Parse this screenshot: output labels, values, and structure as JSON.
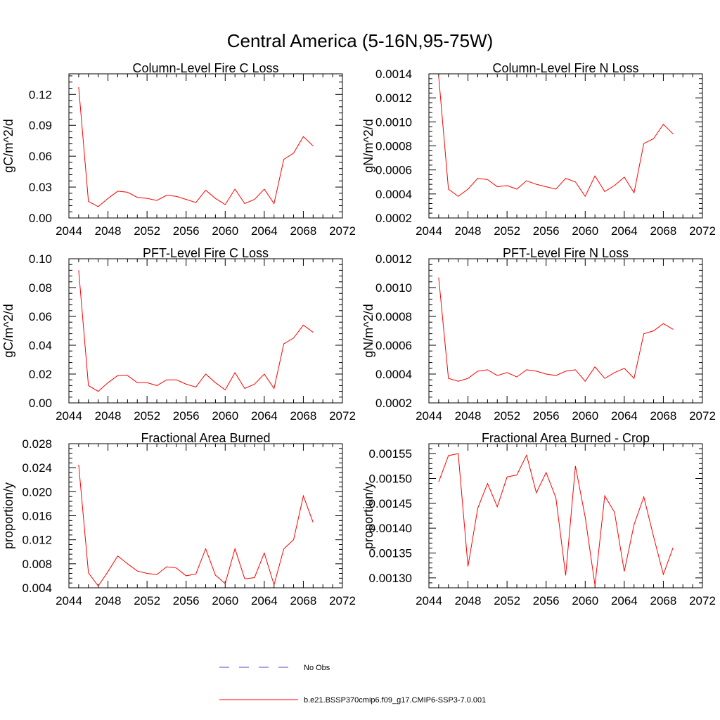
{
  "figure": {
    "title": "Central America (5-16N,95-75W)"
  },
  "legend": [
    {
      "label": "No Obs",
      "color": "#4d4dcc",
      "style": "dashed"
    },
    {
      "label": "b.e21.BSSP370cmip6.f09_g17.CMIP6-SSP3-7.0.001",
      "color": "#ff0000",
      "style": "solid"
    }
  ],
  "colors": {
    "series": "#ff0000",
    "axis": "#000000",
    "obs": "#4d4dcc"
  },
  "chart_data": [
    {
      "type": "line",
      "title": "Column-Level Fire C Loss",
      "xlabel": "",
      "ylabel": "gC/m^2/d",
      "xlim": [
        2044,
        2072
      ],
      "ylim": [
        0,
        0.14
      ],
      "xticks": [
        "2044",
        "2048",
        "2052",
        "2056",
        "2060",
        "2064",
        "2068",
        "2072"
      ],
      "yticks": [
        "0.00",
        "0.03",
        "0.06",
        "0.09",
        "0.12"
      ],
      "x": [
        2045,
        2046,
        2047,
        2048,
        2049,
        2050,
        2051,
        2052,
        2053,
        2054,
        2055,
        2056,
        2057,
        2058,
        2059,
        2060,
        2061,
        2062,
        2063,
        2064,
        2065,
        2066,
        2067,
        2068,
        2069
      ],
      "series": [
        {
          "name": "b.e21.BSSP370cmip6.f09_g17.CMIP6-SSP3-7.0.001",
          "values": [
            0.127,
            0.016,
            0.011,
            0.019,
            0.026,
            0.025,
            0.02,
            0.019,
            0.017,
            0.022,
            0.021,
            0.018,
            0.015,
            0.027,
            0.019,
            0.013,
            0.028,
            0.014,
            0.018,
            0.028,
            0.014,
            0.057,
            0.063,
            0.079,
            0.07
          ]
        }
      ]
    },
    {
      "type": "line",
      "title": "Column-Level Fire N Loss",
      "xlabel": "",
      "ylabel": "gN/m^2/d",
      "xlim": [
        2044,
        2072
      ],
      "ylim": [
        0.0002,
        0.0014
      ],
      "xticks": [
        "2044",
        "2048",
        "2052",
        "2056",
        "2060",
        "2064",
        "2068",
        "2072"
      ],
      "yticks": [
        "0.0002",
        "0.0004",
        "0.0006",
        "0.0008",
        "0.0010",
        "0.0012",
        "0.0014"
      ],
      "x": [
        2045,
        2046,
        2047,
        2048,
        2049,
        2050,
        2051,
        2052,
        2053,
        2054,
        2055,
        2056,
        2057,
        2058,
        2059,
        2060,
        2061,
        2062,
        2063,
        2064,
        2065,
        2066,
        2067,
        2068,
        2069
      ],
      "series": [
        {
          "name": "b.e21.BSSP370cmip6.f09_g17.CMIP6-SSP3-7.0.001",
          "values": [
            0.00138,
            0.00044,
            0.00038,
            0.00044,
            0.00053,
            0.00052,
            0.00046,
            0.00047,
            0.00044,
            0.00051,
            0.00048,
            0.00046,
            0.00044,
            0.00053,
            0.0005,
            0.00038,
            0.00055,
            0.00042,
            0.00047,
            0.00054,
            0.00041,
            0.00082,
            0.00086,
            0.00098,
            0.0009
          ]
        }
      ]
    },
    {
      "type": "line",
      "title": "PFT-Level Fire C Loss",
      "xlabel": "",
      "ylabel": "gC/m^2/d",
      "xlim": [
        2044,
        2072
      ],
      "ylim": [
        0,
        0.1
      ],
      "xticks": [
        "2044",
        "2048",
        "2052",
        "2056",
        "2060",
        "2064",
        "2068",
        "2072"
      ],
      "yticks": [
        "0.00",
        "0.02",
        "0.04",
        "0.06",
        "0.08",
        "0.10"
      ],
      "x": [
        2045,
        2046,
        2047,
        2048,
        2049,
        2050,
        2051,
        2052,
        2053,
        2054,
        2055,
        2056,
        2057,
        2058,
        2059,
        2060,
        2061,
        2062,
        2063,
        2064,
        2065,
        2066,
        2067,
        2068,
        2069
      ],
      "series": [
        {
          "name": "b.e21.BSSP370cmip6.f09_g17.CMIP6-SSP3-7.0.001",
          "values": [
            0.092,
            0.012,
            0.008,
            0.014,
            0.019,
            0.019,
            0.014,
            0.014,
            0.012,
            0.016,
            0.016,
            0.013,
            0.011,
            0.02,
            0.014,
            0.009,
            0.021,
            0.01,
            0.013,
            0.02,
            0.01,
            0.041,
            0.045,
            0.054,
            0.049
          ]
        }
      ]
    },
    {
      "type": "line",
      "title": "PFT-Level Fire N Loss",
      "xlabel": "",
      "ylabel": "gN/m^2/d",
      "xlim": [
        2044,
        2072
      ],
      "ylim": [
        0.0002,
        0.0012
      ],
      "xticks": [
        "2044",
        "2048",
        "2052",
        "2056",
        "2060",
        "2064",
        "2068",
        "2072"
      ],
      "yticks": [
        "0.0002",
        "0.0004",
        "0.0006",
        "0.0008",
        "0.0010",
        "0.0012"
      ],
      "x": [
        2045,
        2046,
        2047,
        2048,
        2049,
        2050,
        2051,
        2052,
        2053,
        2054,
        2055,
        2056,
        2057,
        2058,
        2059,
        2060,
        2061,
        2062,
        2063,
        2064,
        2065,
        2066,
        2067,
        2068,
        2069
      ],
      "series": [
        {
          "name": "b.e21.BSSP370cmip6.f09_g17.CMIP6-SSP3-7.0.001",
          "values": [
            0.00107,
            0.00037,
            0.00035,
            0.00037,
            0.00042,
            0.00043,
            0.00039,
            0.00041,
            0.00038,
            0.00043,
            0.00042,
            0.0004,
            0.00039,
            0.00042,
            0.00043,
            0.00035,
            0.00045,
            0.00037,
            0.00041,
            0.00044,
            0.00037,
            0.00068,
            0.0007,
            0.00075,
            0.00071
          ]
        }
      ]
    },
    {
      "type": "line",
      "title": "Fractional Area Burned",
      "xlabel": "",
      "ylabel": "proportion/y",
      "xlim": [
        2044,
        2072
      ],
      "ylim": [
        0.004,
        0.028
      ],
      "xticks": [
        "2044",
        "2048",
        "2052",
        "2056",
        "2060",
        "2064",
        "2068",
        "2072"
      ],
      "yticks": [
        "0.004",
        "0.008",
        "0.012",
        "0.016",
        "0.020",
        "0.024",
        "0.028"
      ],
      "x": [
        2045,
        2046,
        2047,
        2048,
        2049,
        2050,
        2051,
        2052,
        2053,
        2054,
        2055,
        2056,
        2057,
        2058,
        2059,
        2060,
        2061,
        2062,
        2063,
        2064,
        2065,
        2066,
        2067,
        2068,
        2069
      ],
      "series": [
        {
          "name": "b.e21.BSSP370cmip6.f09_g17.CMIP6-SSP3-7.0.001",
          "values": [
            0.0245,
            0.0065,
            0.0043,
            0.0067,
            0.0093,
            0.008,
            0.0068,
            0.0064,
            0.0062,
            0.0075,
            0.0073,
            0.006,
            0.0063,
            0.0105,
            0.0061,
            0.0047,
            0.0105,
            0.0055,
            0.0057,
            0.0098,
            0.0045,
            0.0105,
            0.012,
            0.0193,
            0.0149
          ]
        }
      ]
    },
    {
      "type": "line",
      "title": "Fractional Area Burned - Crop",
      "xlabel": "",
      "ylabel": "proportion/y",
      "xlim": [
        2044,
        2072
      ],
      "ylim": [
        0.00128,
        0.00157
      ],
      "xticks": [
        "2044",
        "2048",
        "2052",
        "2056",
        "2060",
        "2064",
        "2068",
        "2072"
      ],
      "yticks": [
        "0.00130",
        "0.00135",
        "0.00140",
        "0.00145",
        "0.00150",
        "0.00155"
      ],
      "x": [
        2045,
        2046,
        2047,
        2048,
        2049,
        2050,
        2051,
        2052,
        2053,
        2054,
        2055,
        2056,
        2057,
        2058,
        2059,
        2060,
        2061,
        2062,
        2063,
        2064,
        2065,
        2066,
        2067,
        2068,
        2069
      ],
      "series": [
        {
          "name": "b.e21.BSSP370cmip6.f09_g17.CMIP6-SSP3-7.0.001",
          "values": [
            0.001493,
            0.001546,
            0.00155,
            0.001323,
            0.00144,
            0.00149,
            0.001443,
            0.001503,
            0.001507,
            0.001547,
            0.001471,
            0.001512,
            0.001461,
            0.001305,
            0.001525,
            0.001422,
            0.001285,
            0.001465,
            0.001432,
            0.001313,
            0.001407,
            0.001463,
            0.001383,
            0.001307,
            0.001361
          ]
        }
      ]
    }
  ]
}
